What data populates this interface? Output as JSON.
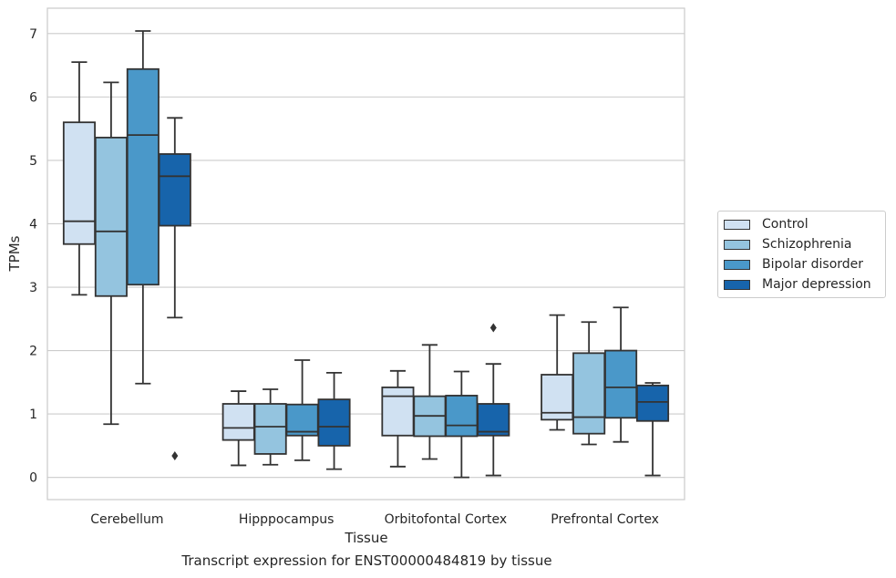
{
  "caption": "Transcript expression for ENST00000484819 by tissue",
  "chart_data": {
    "type": "box",
    "xlabel": "Tissue",
    "ylabel": "TPMs",
    "ylim": [
      -0.35,
      7.4
    ],
    "yticks": [
      0,
      1,
      2,
      3,
      4,
      5,
      6,
      7
    ],
    "grid": "horizontal",
    "legend_placement": "right",
    "categories": [
      "Cerebellum",
      "Hipppocampus",
      "Orbitofontal Cortex",
      "Prefrontal Cortex"
    ],
    "series": [
      {
        "name": "Control",
        "color": "#d0e1f2",
        "boxes": [
          {
            "whislo": 2.88,
            "q1": 3.68,
            "med": 4.04,
            "q3": 5.6,
            "whishi": 6.55,
            "fliers": []
          },
          {
            "whislo": 0.19,
            "q1": 0.59,
            "med": 0.78,
            "q3": 1.16,
            "whishi": 1.36,
            "fliers": []
          },
          {
            "whislo": 0.17,
            "q1": 0.66,
            "med": 1.28,
            "q3": 1.42,
            "whishi": 1.68,
            "fliers": []
          },
          {
            "whislo": 0.75,
            "q1": 0.91,
            "med": 1.02,
            "q3": 1.62,
            "whishi": 2.56,
            "fliers": []
          }
        ]
      },
      {
        "name": "Schizophrenia",
        "color": "#94c4df",
        "boxes": [
          {
            "whislo": 0.84,
            "q1": 2.86,
            "med": 3.88,
            "q3": 5.36,
            "whishi": 6.23,
            "fliers": []
          },
          {
            "whislo": 0.2,
            "q1": 0.37,
            "med": 0.8,
            "q3": 1.16,
            "whishi": 1.39,
            "fliers": []
          },
          {
            "whislo": 0.29,
            "q1": 0.65,
            "med": 0.97,
            "q3": 1.28,
            "whishi": 2.09,
            "fliers": []
          },
          {
            "whislo": 0.52,
            "q1": 0.69,
            "med": 0.95,
            "q3": 1.96,
            "whishi": 2.45,
            "fliers": []
          }
        ]
      },
      {
        "name": "Bipolar disorder",
        "color": "#4a98c9",
        "boxes": [
          {
            "whislo": 1.48,
            "q1": 3.04,
            "med": 5.4,
            "q3": 6.44,
            "whishi": 7.04,
            "fliers": []
          },
          {
            "whislo": 0.27,
            "q1": 0.66,
            "med": 0.72,
            "q3": 1.15,
            "whishi": 1.85,
            "fliers": []
          },
          {
            "whislo": 0.0,
            "q1": 0.65,
            "med": 0.82,
            "q3": 1.29,
            "whishi": 1.67,
            "fliers": []
          },
          {
            "whislo": 0.56,
            "q1": 0.94,
            "med": 1.42,
            "q3": 2.0,
            "whishi": 2.68,
            "fliers": []
          }
        ]
      },
      {
        "name": "Major depression",
        "color": "#1764ab",
        "boxes": [
          {
            "whislo": 2.52,
            "q1": 3.97,
            "med": 4.75,
            "q3": 5.1,
            "whishi": 5.67,
            "fliers": [
              0.34
            ]
          },
          {
            "whislo": 0.13,
            "q1": 0.5,
            "med": 0.8,
            "q3": 1.23,
            "whishi": 1.65,
            "fliers": []
          },
          {
            "whislo": 0.03,
            "q1": 0.66,
            "med": 0.72,
            "q3": 1.16,
            "whishi": 1.79,
            "fliers": [
              2.36
            ]
          },
          {
            "whislo": 0.03,
            "q1": 0.89,
            "med": 1.19,
            "q3": 1.45,
            "whishi": 1.49,
            "fliers": []
          }
        ]
      }
    ]
  }
}
